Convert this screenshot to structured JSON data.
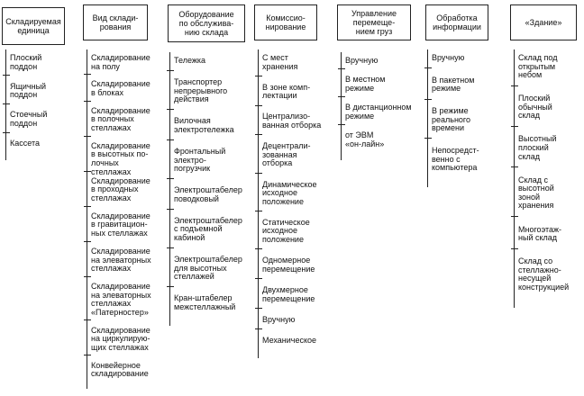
{
  "columns": [
    {
      "header": "Складируемая\nединица",
      "items": [
        "Плоский\nподдон",
        "Ящичный\nподдон",
        "Стоечный\nподдон",
        "Кассета"
      ]
    },
    {
      "header": "Вид склади-\nрования",
      "items": [
        "Складирование\nна полу",
        "Складирование\nв блоках",
        "Складирование\nв полочных\nстеллажах",
        "Складирование\nв высотных по-\nлочных стеллажах",
        "Складирование\nв проходных\nстеллажах",
        "Складирование\nв гравитацион-\nных стеллажах",
        "Складирование\nна элеваторных\nстеллажах",
        "Складирование\nна элеваторных\nстеллажах\n«Патерностер»",
        "Складирование\nна циркулирую-\nщих стеллажах",
        "Конвейерное\nскладирование"
      ]
    },
    {
      "header": "Оборудование\nпо обслужива-\nнию склада",
      "items": [
        "Тележка",
        "Транспортер\nнепрерывного\nдействия",
        "Вилочная\nэлектротележка",
        "Фронтальный\nэлектро-\nпогрузчик",
        "Электроштабелер\nповодковый",
        "Электроштабелер\nс подъемной\nкабиной",
        "Электроштабелер\nдля высотных\nстеллажей",
        "Кран-штабелер\nмежстеллажный"
      ]
    },
    {
      "header": "Комиссио-\nнирование",
      "items": [
        "С мест\nхранения",
        "В зоне комп-\nлектации",
        "Централизо-\nванная отборка",
        "Децентрали-\nзованная\nотборка",
        "Динамическое\nисходное\nположение",
        "Статическое\nисходное\nположение",
        "Одномерное\nперемещение",
        "Двухмерное\nперемещение",
        "Вручную",
        "Механическое"
      ]
    },
    {
      "header": "Управление\nперемеще-\nнием груз",
      "items": [
        "Вручную",
        "В местном\nрежиме",
        "В дистанционном\nрежиме",
        "от ЭВМ\n«он-лайн»"
      ]
    },
    {
      "header": "Обработка\nинформации",
      "items": [
        "Вручную",
        "В пакетном\nрежиме",
        "В режиме\nреального\nвремени",
        "Непосредст-\nвенно с\nкомпьютера"
      ]
    },
    {
      "header": "«Здание»",
      "items": [
        "Склад под\nоткрытым\nнебом",
        "Плоский\nобычный\nсклад",
        "Высотный\nплоский\nсклад",
        "Склад с\nвысотной\nзоной\nхранения",
        "Многоэтаж-\nный склад",
        "Склад со\nстеллажно-\nнесущей\nконструкцией"
      ]
    }
  ]
}
